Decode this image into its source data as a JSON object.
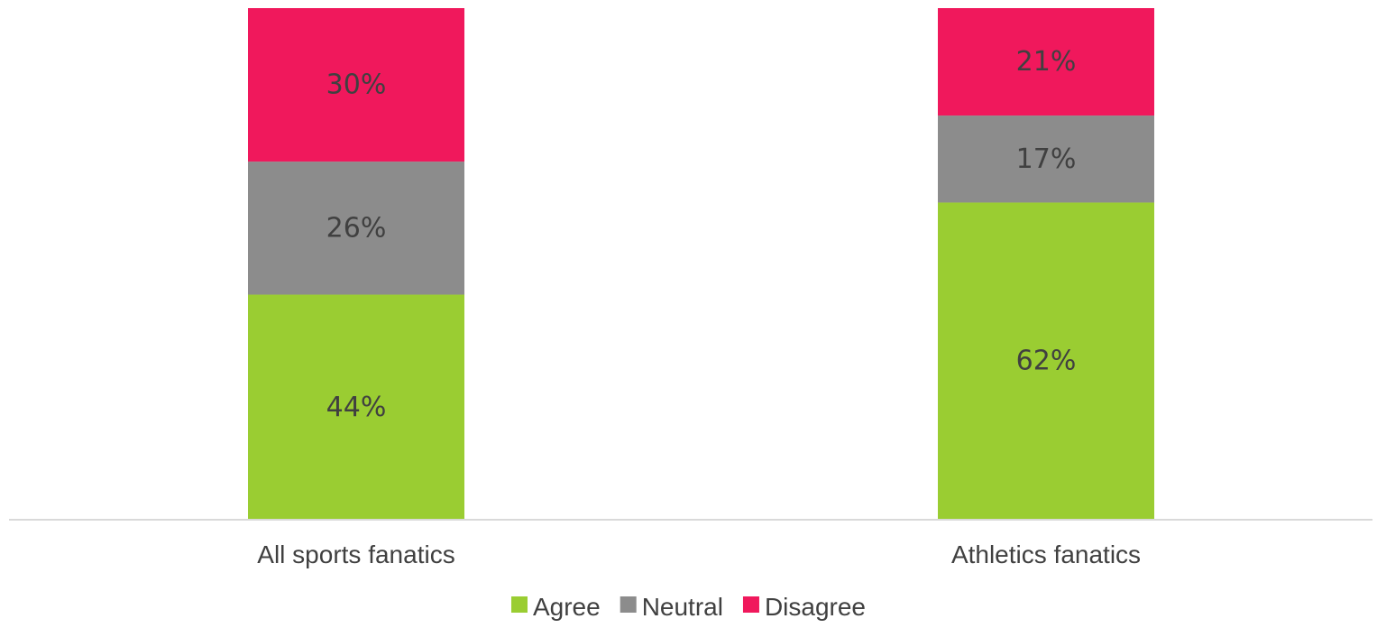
{
  "chart_data": {
    "type": "bar",
    "stacked": true,
    "normalized_percent": true,
    "categories": [
      "All sports fanatics",
      "Athletics fanatics"
    ],
    "series": [
      {
        "name": "Agree",
        "values": [
          44,
          62
        ],
        "labels": [
          "44%",
          "62%"
        ],
        "color": "#9ACD32"
      },
      {
        "name": "Neutral",
        "values": [
          26,
          17
        ],
        "labels": [
          "26%",
          "17%"
        ],
        "color": "#8C8C8C"
      },
      {
        "name": "Disagree",
        "values": [
          30,
          21
        ],
        "labels": [
          "30%",
          "21%"
        ],
        "color": "#F0185C"
      }
    ],
    "ylim": [
      0,
      100
    ],
    "grid": false,
    "legend": "bottom",
    "label_color": "#404040",
    "axis_color": "#D9D9D9"
  }
}
